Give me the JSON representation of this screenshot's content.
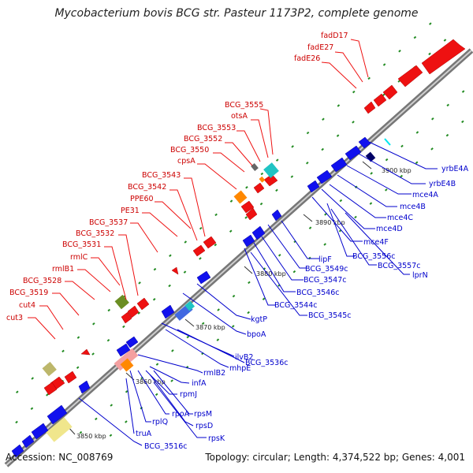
{
  "title": "Mycobacterium bovis BCG str. Pasteur 1173P2, complete genome",
  "footer": {
    "accession": "Accession: NC_008769",
    "summary": "Topology: circular; Length: 4,374,522 bp; Genes: 4,001"
  },
  "colors": {
    "forward_gene": "#ee1111",
    "reverse_gene": "#1111ee",
    "label_forward": "#cc0000",
    "label_reverse": "#0000cc",
    "backbone": "#999999",
    "dots": "#228b22"
  },
  "ticks": [
    {
      "label": "3850 kbp"
    },
    {
      "label": "3860 kbp"
    },
    {
      "label": "3870 kbp"
    },
    {
      "label": "3880 kbp"
    },
    {
      "label": "3890 kbp"
    },
    {
      "label": "3900 kbp"
    }
  ],
  "forward_labels": [
    "fadD17",
    "fadE27",
    "fadE26",
    "BCG_3555",
    "otsA",
    "BCG_3553",
    "BCG_3552",
    "BCG_3550",
    "cpsA",
    "BCG_3543",
    "BCG_3542",
    "PPE60",
    "PE31",
    "BCG_3537",
    "BCG_3532",
    "BCG_3531",
    "rmlC",
    "rmlB1",
    "BCG_3528",
    "BCG_3519",
    "cut4",
    "cut3"
  ],
  "reverse_labels": [
    "yrbE4A",
    "yrbE4B",
    "mce4A",
    "mce4B",
    "mce4C",
    "mce4D",
    "mce4F",
    "BCG_3556c",
    "BCG_3557c",
    "lprN",
    "lipF",
    "BCG_3549c",
    "BCG_3547c",
    "BCG_3546c",
    "BCG_3544c",
    "BCG_3545c",
    "kgtP",
    "bpoA",
    "ilvB2",
    "BCG_3536c",
    "mhpE",
    "rmlB2",
    "infA",
    "rpmJ",
    "rpsM",
    "rpoA",
    "rpsD",
    "rplQ",
    "rpsK",
    "truA",
    "BCG_3516c"
  ]
}
